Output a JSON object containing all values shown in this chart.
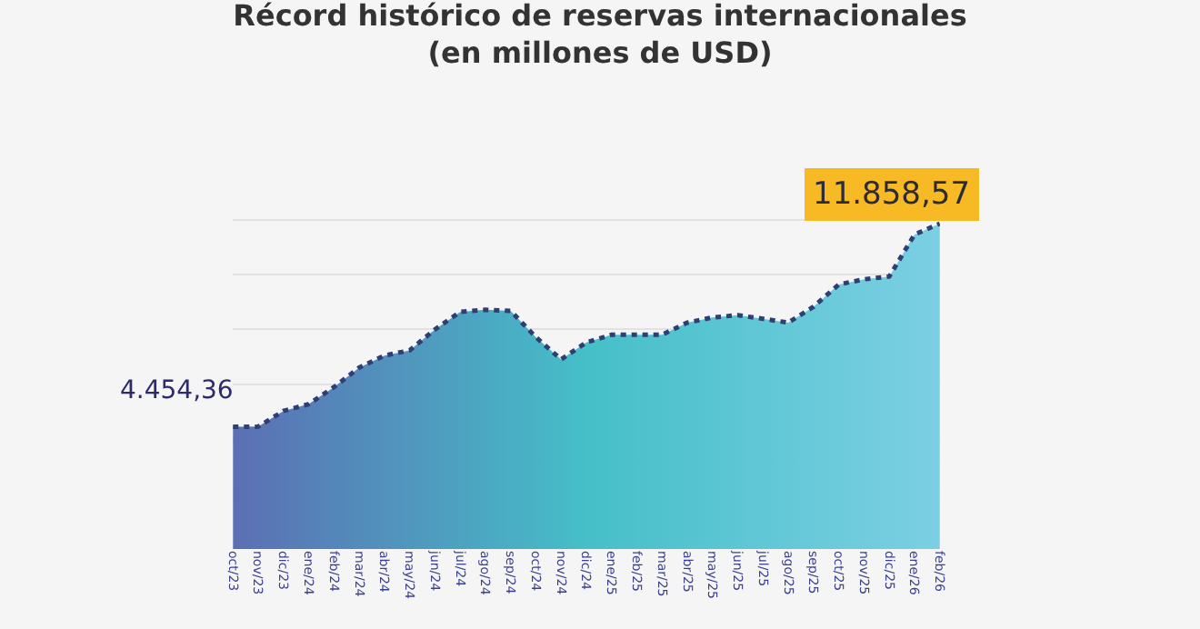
{
  "chart_data": {
    "type": "area",
    "title": "Récord histórico de reservas internacionales\n(en millones de USD)",
    "categories": [
      "oct/23",
      "nov/23",
      "dic/23",
      "ene/24",
      "feb/24",
      "mar/24",
      "abr/24",
      "may/24",
      "jun/24",
      "jul/24",
      "ago/24",
      "sep/24",
      "oct/24",
      "nov/24",
      "dic/24",
      "ene/25",
      "feb/25",
      "mar/25",
      "abr/25",
      "may/25",
      "jun/25",
      "jul/25",
      "ago/25",
      "sep/25",
      "oct/25",
      "nov/25",
      "dic/25",
      "ene/26",
      "feb/26"
    ],
    "series": [
      {
        "color": "#45bfc8",
        "values": [
          4454.36,
          4460,
          5030,
          5280,
          5900,
          6610,
          7050,
          7240,
          8000,
          8640,
          8720,
          8680,
          7720,
          6910,
          7530,
          7810,
          7810,
          7810,
          8250,
          8440,
          8520,
          8390,
          8250,
          8830,
          9640,
          9830,
          9930,
          11460,
          11858.57
        ],
        "value_labels": [
          "4.454,36",
          null,
          null,
          null,
          null,
          null,
          null,
          null,
          null,
          null,
          null,
          null,
          null,
          null,
          null,
          null,
          null,
          null,
          null,
          null,
          null,
          null,
          null,
          null,
          null,
          null,
          null,
          null,
          "11.858,57"
        ]
      }
    ],
    "grid": "y",
    "tick_labels": "x",
    "line_style": "dotted"
  }
}
